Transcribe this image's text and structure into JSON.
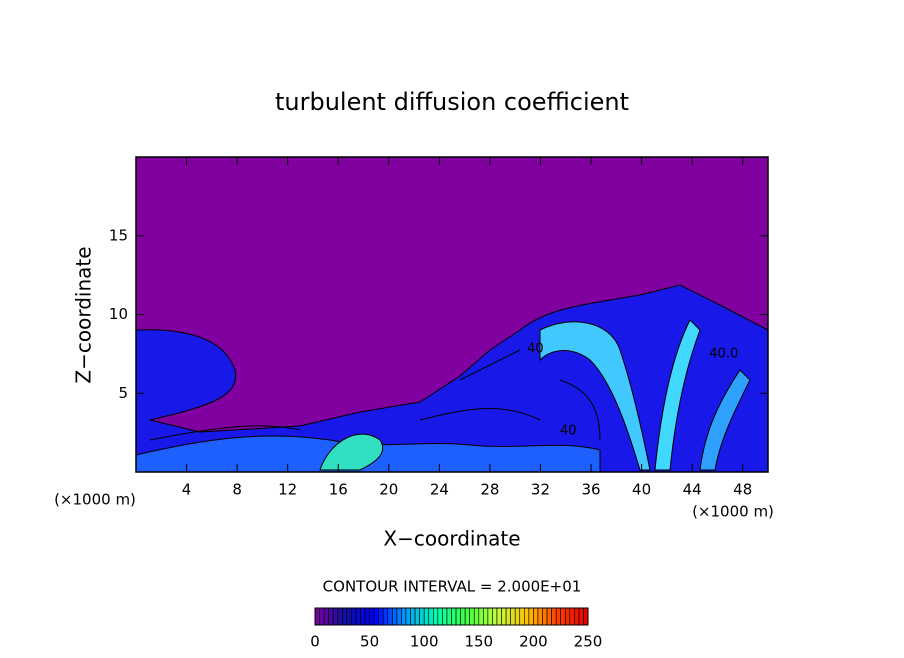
{
  "chart_data": {
    "type": "contour",
    "title": "turbulent diffusion coefficient",
    "xlabel": "X−coordinate",
    "ylabel": "Z−coordinate",
    "x_unit": "(×1000 m)",
    "y_unit": "(×1000 m)",
    "xlim": [
      0,
      50
    ],
    "ylim": [
      0,
      20
    ],
    "xticks": [
      4,
      8,
      12,
      16,
      20,
      24,
      28,
      32,
      36,
      40,
      44,
      48
    ],
    "yticks": [
      5,
      10,
      15
    ],
    "background_color": "#8000a0",
    "contour_interval_label": "CONTOUR INTERVAL = 2.000E+01",
    "contour_labels": [
      {
        "text": "40.0",
        "x": 46.5,
        "y": 7.5
      },
      {
        "text": "40",
        "x": 31.6,
        "y": 7.8
      },
      {
        "text": "40",
        "x": 34.2,
        "y": 2.6
      }
    ],
    "colorbar": {
      "lim": [
        0,
        250
      ],
      "ticks": [
        0,
        50,
        100,
        150,
        200,
        250
      ],
      "colors": [
        "#7f00a0",
        "#1010a0",
        "#0000ff",
        "#00a0ff",
        "#00ffb0",
        "#40ff40",
        "#c0ff40",
        "#ffc000",
        "#ff4000",
        "#e00000"
      ]
    }
  }
}
